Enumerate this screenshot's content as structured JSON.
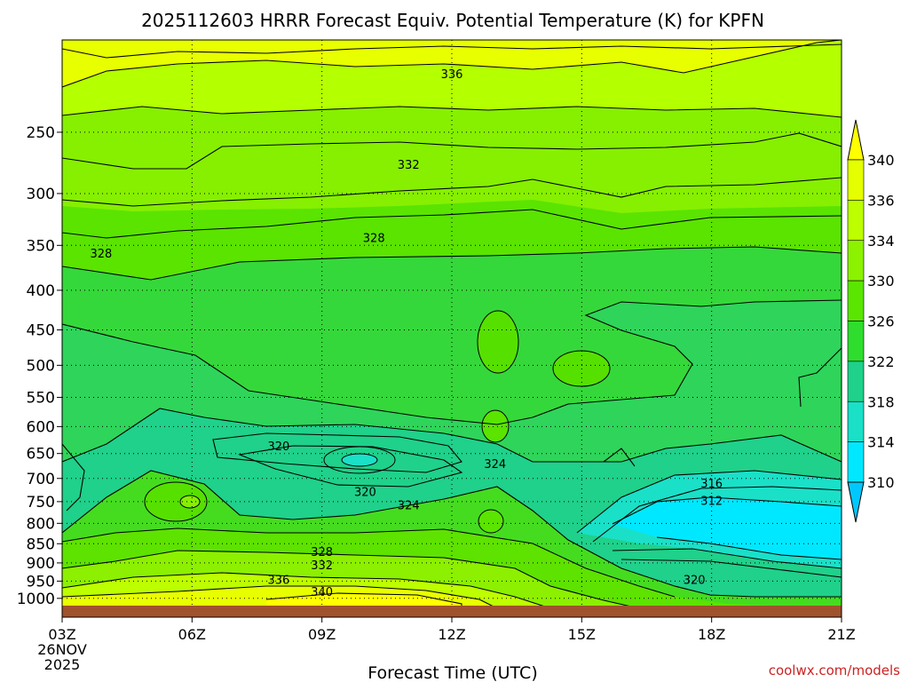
{
  "chart_data": {
    "type": "heatmap",
    "title": "2025112603 HRRR Forecast Equiv. Potential Temperature (K) for KPFN",
    "xlabel": "Forecast Time (UTC)",
    "ylabel": "",
    "x_ticks": [
      "03Z",
      "06Z",
      "09Z",
      "12Z",
      "15Z",
      "18Z",
      "21Z"
    ],
    "x_start_date": [
      "26NOV",
      "2025"
    ],
    "y_ticks": [
      250,
      300,
      350,
      400,
      450,
      500,
      550,
      600,
      650,
      700,
      750,
      800,
      850,
      900,
      950,
      1000
    ],
    "y_scale": "log",
    "grid": true,
    "colorbar": {
      "labels": [
        340,
        336,
        334,
        330,
        326,
        322,
        318,
        314,
        310
      ],
      "colors": [
        "#ffff00",
        "#e5ff00",
        "#bdff00",
        "#8cf200",
        "#5ae600",
        "#2fdd2f",
        "#1fd18a",
        "#1ae0c8",
        "#00e8ff",
        "#00c8ff"
      ]
    },
    "contour_labels": [
      {
        "text": "336",
        "x_hour": 12.0,
        "p": 210
      },
      {
        "text": "332",
        "x_hour": 11.0,
        "p": 275
      },
      {
        "text": "328",
        "x_hour": 10.2,
        "p": 342
      },
      {
        "text": "328",
        "x_hour": 3.9,
        "p": 358
      },
      {
        "text": "320",
        "x_hour": 8.0,
        "p": 635
      },
      {
        "text": "324",
        "x_hour": 13.0,
        "p": 670
      },
      {
        "text": "320",
        "x_hour": 10.0,
        "p": 728
      },
      {
        "text": "324",
        "x_hour": 11.0,
        "p": 757
      },
      {
        "text": "316",
        "x_hour": 18.0,
        "p": 710
      },
      {
        "text": "312",
        "x_hour": 18.0,
        "p": 747
      },
      {
        "text": "328",
        "x_hour": 9.0,
        "p": 870
      },
      {
        "text": "332",
        "x_hour": 9.0,
        "p": 905
      },
      {
        "text": "336",
        "x_hour": 8.0,
        "p": 945
      },
      {
        "text": "340",
        "x_hour": 9.0,
        "p": 980
      },
      {
        "text": "320",
        "x_hour": 17.6,
        "p": 945
      }
    ]
  },
  "footer": {
    "credit": "coolwx.com/models"
  }
}
